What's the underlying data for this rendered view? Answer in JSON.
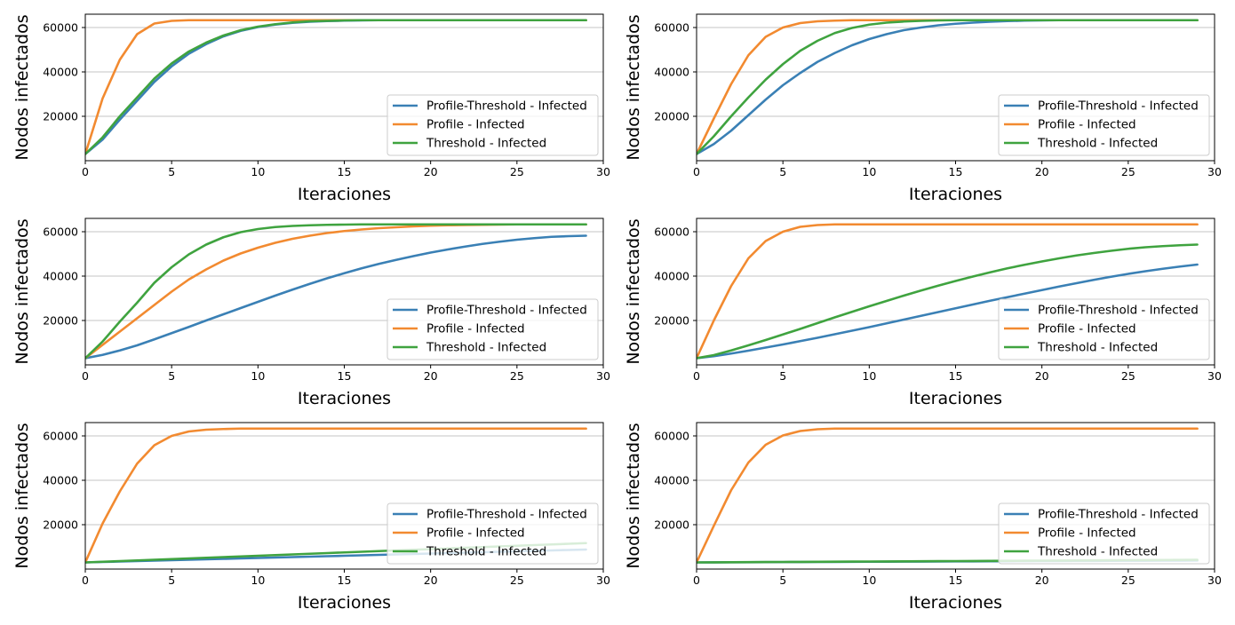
{
  "figure": {
    "colors": {
      "Profile-Threshold - Infected": "#3a80b5",
      "Profile - Infected": "#f28a30",
      "Threshold - Infected": "#3fa33f",
      "grid": "#b0b0b0",
      "axes": "#000000"
    },
    "layout": "3x2 grid of line charts"
  },
  "chart_data": [
    {
      "type": "line",
      "title": "",
      "xlabel": "Iteraciones",
      "ylabel": "Nodos infectados",
      "xlim": [
        0,
        30
      ],
      "ylim": [
        0,
        66000
      ],
      "xticks": [
        "0",
        "5",
        "10",
        "15",
        "20",
        "25",
        "30"
      ],
      "yticks": [
        "20000",
        "40000",
        "60000"
      ],
      "grid": "y",
      "legend": "lower-right",
      "x": [
        0,
        1,
        2,
        3,
        4,
        5,
        6,
        7,
        8,
        9,
        10,
        11,
        12,
        13,
        14,
        15,
        16,
        17,
        18,
        19,
        20,
        21,
        22,
        23,
        24,
        25,
        26,
        27,
        28,
        29
      ],
      "series": [
        {
          "name": "Profile-Threshold - Infected",
          "values": [
            3000,
            9500,
            18500,
            27000,
            35500,
            42500,
            48200,
            52500,
            56000,
            58500,
            60200,
            61300,
            62100,
            62600,
            62900,
            63100,
            63200,
            63300,
            63300,
            63300,
            63300,
            63300,
            63300,
            63300,
            63300,
            63300,
            63300,
            63300,
            63300,
            63300
          ]
        },
        {
          "name": "Profile - Infected",
          "values": [
            3000,
            28000,
            45500,
            57000,
            61800,
            63000,
            63300,
            63300,
            63300,
            63300,
            63300,
            63300,
            63300,
            63300,
            63300,
            63300,
            63300,
            63300,
            63300,
            63300,
            63300,
            63300,
            63300,
            63300,
            63300,
            63300,
            63300,
            63300,
            63300,
            63300
          ]
        },
        {
          "name": "Threshold - Infected",
          "values": [
            3000,
            10500,
            20000,
            28500,
            37000,
            43800,
            49200,
            53200,
            56400,
            58800,
            60400,
            61500,
            62300,
            62800,
            63000,
            63200,
            63300,
            63300,
            63300,
            63300,
            63300,
            63300,
            63300,
            63300,
            63300,
            63300,
            63300,
            63300,
            63300,
            63300
          ]
        }
      ]
    },
    {
      "type": "line",
      "title": "",
      "xlabel": "Iteraciones",
      "ylabel": "Nodos infectados",
      "xlim": [
        0,
        30
      ],
      "ylim": [
        0,
        66000
      ],
      "xticks": [
        "0",
        "5",
        "10",
        "15",
        "20",
        "25",
        "30"
      ],
      "yticks": [
        "20000",
        "40000",
        "60000"
      ],
      "grid": "y",
      "legend": "lower-right",
      "x": [
        0,
        1,
        2,
        3,
        4,
        5,
        6,
        7,
        8,
        9,
        10,
        11,
        12,
        13,
        14,
        15,
        16,
        17,
        18,
        19,
        20,
        21,
        22,
        23,
        24,
        25,
        26,
        27,
        28,
        29
      ],
      "series": [
        {
          "name": "Profile-Threshold - Infected",
          "values": [
            3000,
            7500,
            13500,
            20500,
            27500,
            34000,
            39500,
            44500,
            48500,
            52000,
            54800,
            57000,
            58800,
            60000,
            61000,
            61700,
            62200,
            62600,
            62900,
            63100,
            63200,
            63300,
            63300,
            63300,
            63300,
            63300,
            63300,
            63300,
            63300,
            63300
          ]
        },
        {
          "name": "Profile - Infected",
          "values": [
            3000,
            19000,
            34500,
            47500,
            55800,
            60000,
            62000,
            62800,
            63100,
            63300,
            63300,
            63300,
            63300,
            63300,
            63300,
            63300,
            63300,
            63300,
            63300,
            63300,
            63300,
            63300,
            63300,
            63300,
            63300,
            63300,
            63300,
            63300,
            63300,
            63300
          ]
        },
        {
          "name": "Threshold - Infected",
          "values": [
            3000,
            11000,
            20000,
            28500,
            36500,
            43500,
            49500,
            54000,
            57500,
            59800,
            61300,
            62200,
            62700,
            63000,
            63200,
            63300,
            63300,
            63300,
            63300,
            63300,
            63300,
            63300,
            63300,
            63300,
            63300,
            63300,
            63300,
            63300,
            63300,
            63300
          ]
        }
      ]
    },
    {
      "type": "line",
      "title": "",
      "xlabel": "Iteraciones",
      "ylabel": "Nodos infectados",
      "xlim": [
        0,
        30
      ],
      "ylim": [
        0,
        66000
      ],
      "xticks": [
        "0",
        "5",
        "10",
        "15",
        "20",
        "25",
        "30"
      ],
      "yticks": [
        "20000",
        "40000",
        "60000"
      ],
      "grid": "y",
      "legend": "lower-right",
      "x": [
        0,
        1,
        2,
        3,
        4,
        5,
        6,
        7,
        8,
        9,
        10,
        11,
        12,
        13,
        14,
        15,
        16,
        17,
        18,
        19,
        20,
        21,
        22,
        23,
        24,
        25,
        26,
        27,
        28,
        29
      ],
      "series": [
        {
          "name": "Profile-Threshold - Infected",
          "values": [
            3000,
            4500,
            6500,
            8800,
            11500,
            14300,
            17100,
            20000,
            22800,
            25600,
            28400,
            31200,
            33900,
            36500,
            39000,
            41300,
            43500,
            45500,
            47300,
            49000,
            50600,
            52000,
            53300,
            54500,
            55500,
            56400,
            57100,
            57700,
            58000,
            58200
          ]
        },
        {
          "name": "Profile - Infected",
          "values": [
            3000,
            9000,
            15000,
            21000,
            27000,
            33000,
            38500,
            43000,
            47000,
            50200,
            52800,
            55000,
            56800,
            58200,
            59400,
            60300,
            61000,
            61600,
            62000,
            62400,
            62700,
            62900,
            63000,
            63100,
            63200,
            63300,
            63300,
            63300,
            63300,
            63300
          ]
        },
        {
          "name": "Threshold - Infected",
          "values": [
            3000,
            10500,
            19500,
            28000,
            37000,
            44000,
            49800,
            54200,
            57500,
            59800,
            61200,
            62100,
            62600,
            62900,
            63100,
            63200,
            63300,
            63300,
            63300,
            63300,
            63300,
            63300,
            63300,
            63300,
            63300,
            63300,
            63300,
            63300,
            63300,
            63300
          ]
        }
      ]
    },
    {
      "type": "line",
      "title": "",
      "xlabel": "Iteraciones",
      "ylabel": "Nodos infectados",
      "xlim": [
        0,
        30
      ],
      "ylim": [
        0,
        66000
      ],
      "xticks": [
        "0",
        "5",
        "10",
        "15",
        "20",
        "25",
        "30"
      ],
      "yticks": [
        "20000",
        "40000",
        "60000"
      ],
      "grid": "y",
      "legend": "lower-right",
      "x": [
        0,
        1,
        2,
        3,
        4,
        5,
        6,
        7,
        8,
        9,
        10,
        11,
        12,
        13,
        14,
        15,
        16,
        17,
        18,
        19,
        20,
        21,
        22,
        23,
        24,
        25,
        26,
        27,
        28,
        29
      ],
      "series": [
        {
          "name": "Profile-Threshold - Infected",
          "values": [
            3000,
            3900,
            5100,
            6400,
            7800,
            9200,
            10700,
            12200,
            13800,
            15400,
            17000,
            18700,
            20400,
            22100,
            23800,
            25500,
            27200,
            28900,
            30500,
            32100,
            33700,
            35300,
            36800,
            38300,
            39700,
            41000,
            42200,
            43300,
            44300,
            45200
          ]
        },
        {
          "name": "Profile - Infected",
          "values": [
            3000,
            20000,
            35500,
            48000,
            55800,
            60000,
            62200,
            63000,
            63300,
            63300,
            63300,
            63300,
            63300,
            63300,
            63300,
            63300,
            63300,
            63300,
            63300,
            63300,
            63300,
            63300,
            63300,
            63300,
            63300,
            63300,
            63300,
            63300,
            63300,
            63300
          ]
        },
        {
          "name": "Threshold - Infected",
          "values": [
            3000,
            4400,
            6500,
            8800,
            11200,
            13700,
            16200,
            18800,
            21400,
            23900,
            26400,
            28800,
            31200,
            33500,
            35700,
            37800,
            39800,
            41700,
            43500,
            45100,
            46600,
            48000,
            49300,
            50400,
            51400,
            52300,
            53000,
            53500,
            53900,
            54200
          ]
        }
      ]
    },
    {
      "type": "line",
      "title": "",
      "xlabel": "Iteraciones",
      "ylabel": "Nodos infectados",
      "xlim": [
        0,
        30
      ],
      "ylim": [
        0,
        66000
      ],
      "xticks": [
        "0",
        "5",
        "10",
        "15",
        "20",
        "25",
        "30"
      ],
      "yticks": [
        "20000",
        "40000",
        "60000"
      ],
      "grid": "y",
      "legend": "lower-right",
      "x": [
        0,
        1,
        2,
        3,
        4,
        5,
        6,
        7,
        8,
        9,
        10,
        11,
        12,
        13,
        14,
        15,
        16,
        17,
        18,
        19,
        20,
        21,
        22,
        23,
        24,
        25,
        26,
        27,
        28,
        29
      ],
      "series": [
        {
          "name": "Profile-Threshold - Infected",
          "values": [
            3000,
            3200,
            3400,
            3600,
            3800,
            4000,
            4200,
            4400,
            4600,
            4800,
            5000,
            5200,
            5400,
            5600,
            5800,
            6000,
            6200,
            6400,
            6600,
            6800,
            7000,
            7200,
            7400,
            7600,
            7800,
            8000,
            8200,
            8400,
            8600,
            8800
          ]
        },
        {
          "name": "Profile - Infected",
          "values": [
            3000,
            20500,
            35000,
            47500,
            55800,
            60000,
            62000,
            62800,
            63100,
            63300,
            63300,
            63300,
            63300,
            63300,
            63300,
            63300,
            63300,
            63300,
            63300,
            63300,
            63300,
            63300,
            63300,
            63300,
            63300,
            63300,
            63300,
            63300,
            63300,
            63300
          ]
        },
        {
          "name": "Threshold - Infected",
          "values": [
            3000,
            3300,
            3600,
            3900,
            4200,
            4500,
            4800,
            5100,
            5400,
            5700,
            6000,
            6300,
            6600,
            6900,
            7200,
            7500,
            7800,
            8100,
            8400,
            8700,
            9000,
            9300,
            9600,
            9900,
            10200,
            10500,
            10800,
            11100,
            11400,
            11700
          ]
        }
      ]
    },
    {
      "type": "line",
      "title": "",
      "xlabel": "Iteraciones",
      "ylabel": "Nodos infectados",
      "xlim": [
        0,
        30
      ],
      "ylim": [
        0,
        66000
      ],
      "xticks": [
        "0",
        "5",
        "10",
        "15",
        "20",
        "25",
        "30"
      ],
      "yticks": [
        "20000",
        "40000",
        "60000"
      ],
      "grid": "y",
      "legend": "lower-right",
      "x": [
        0,
        1,
        2,
        3,
        4,
        5,
        6,
        7,
        8,
        9,
        10,
        11,
        12,
        13,
        14,
        15,
        16,
        17,
        18,
        19,
        20,
        21,
        22,
        23,
        24,
        25,
        26,
        27,
        28,
        29
      ],
      "series": [
        {
          "name": "Profile-Threshold - Infected",
          "values": [
            3000,
            3030,
            3060,
            3090,
            3120,
            3150,
            3180,
            3210,
            3240,
            3270,
            3300,
            3330,
            3360,
            3390,
            3420,
            3450,
            3480,
            3510,
            3540,
            3570,
            3600,
            3630,
            3660,
            3690,
            3720,
            3750,
            3780,
            3810,
            3840,
            3870
          ]
        },
        {
          "name": "Profile - Infected",
          "values": [
            3000,
            19500,
            35500,
            48000,
            56000,
            60200,
            62200,
            63000,
            63300,
            63300,
            63300,
            63300,
            63300,
            63300,
            63300,
            63300,
            63300,
            63300,
            63300,
            63300,
            63300,
            63300,
            63300,
            63300,
            63300,
            63300,
            63300,
            63300,
            63300,
            63300
          ]
        },
        {
          "name": "Threshold - Infected",
          "values": [
            3000,
            3040,
            3080,
            3120,
            3160,
            3200,
            3240,
            3280,
            3320,
            3360,
            3400,
            3440,
            3480,
            3520,
            3560,
            3600,
            3640,
            3680,
            3720,
            3760,
            3800,
            3840,
            3880,
            3920,
            3960,
            4000,
            4040,
            4080,
            4120,
            4160
          ]
        }
      ]
    }
  ]
}
